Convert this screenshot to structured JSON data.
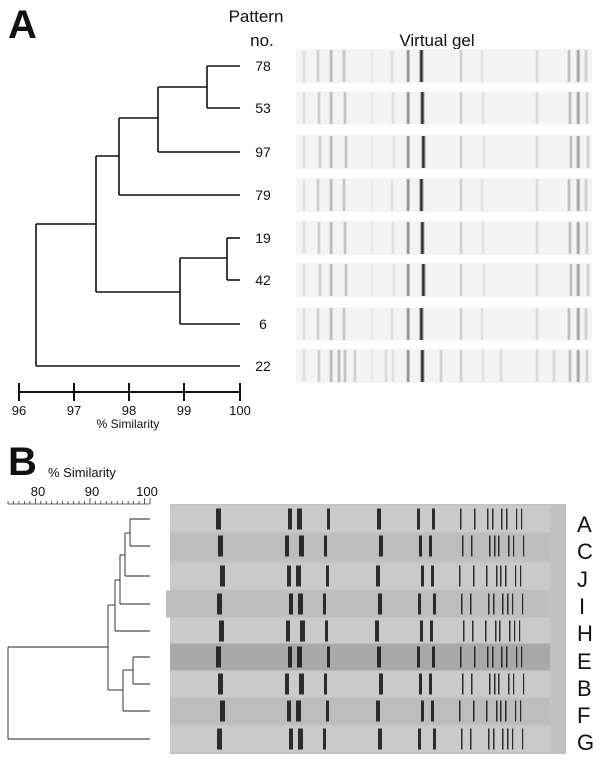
{
  "panel_a": {
    "label": "A",
    "pattern_header": [
      "Pattern",
      "no."
    ],
    "gel_title": "Virtual gel",
    "patterns": [
      "78",
      "53",
      "97",
      "79",
      "19",
      "42",
      "6",
      "22"
    ],
    "axis": {
      "ticks": [
        "96",
        "97",
        "98",
        "99",
        "100"
      ],
      "title": "% Similarity"
    },
    "dendrogram": {
      "nodes": [
        {
          "id": "n1",
          "children": [
            "78",
            "53"
          ],
          "similarity": 99.4
        },
        {
          "id": "n2",
          "children": [
            "n1",
            "97"
          ],
          "similarity": 98.55
        },
        {
          "id": "n3",
          "children": [
            "n2",
            "79"
          ],
          "similarity": 97.8
        },
        {
          "id": "n4",
          "children": [
            "19",
            "42"
          ],
          "similarity": 99.75
        },
        {
          "id": "n5",
          "children": [
            "n4",
            "6"
          ],
          "similarity": 98.95
        },
        {
          "id": "n6",
          "children": [
            "n3",
            "n5"
          ],
          "similarity": 97.4
        },
        {
          "id": "n7",
          "children": [
            "n6",
            "22"
          ],
          "similarity": 96.3
        }
      ]
    }
  },
  "panel_b": {
    "label": "B",
    "axis": {
      "title": "% Similarity",
      "ticks": [
        "80",
        "90",
        "100"
      ]
    },
    "patterns": [
      "A",
      "C",
      "J",
      "I",
      "H",
      "E",
      "B",
      "F",
      "G"
    ]
  },
  "colors": {
    "ink": "#111111",
    "gel_a_background": "#f4f4f4",
    "gel_b_background": "#c2c2c2",
    "gel_b_highlight": "#a9a9a9"
  }
}
